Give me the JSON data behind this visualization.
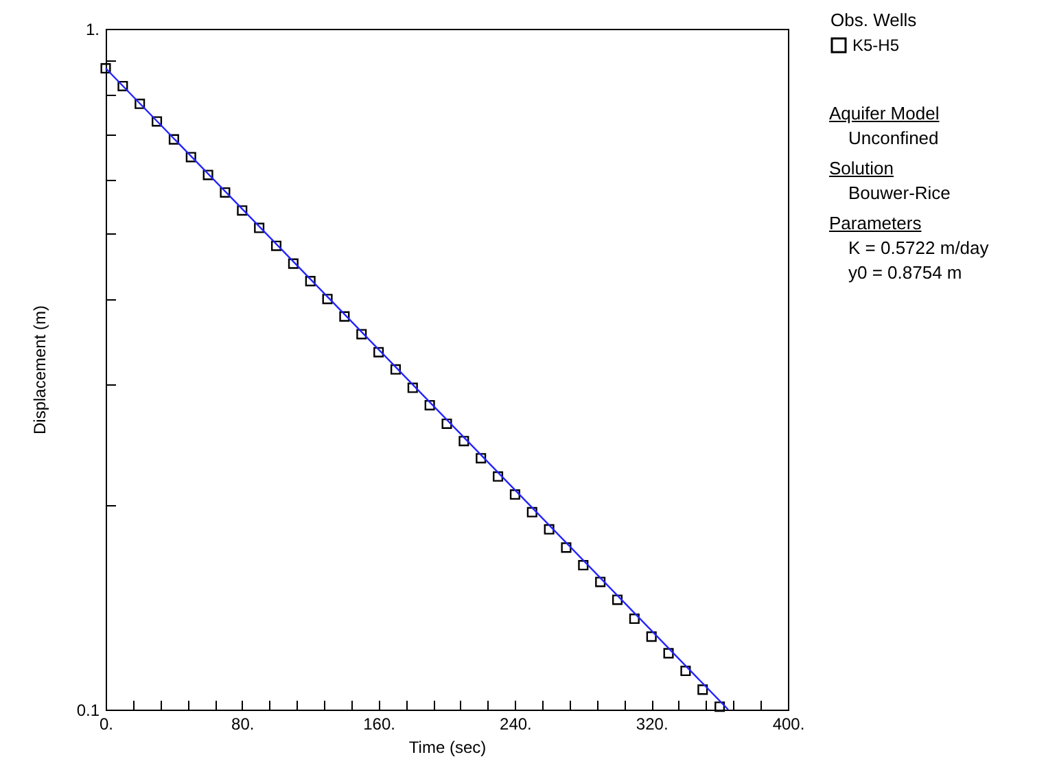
{
  "chart_data": {
    "type": "scatter",
    "xlabel": "Time (sec)",
    "ylabel": "Displacement (m)",
    "legend_title": "Obs. Wells",
    "legend": "right",
    "log": true,
    "grid": false,
    "xlim": [
      0,
      400
    ],
    "xticks": [
      {
        "value": 0,
        "label": "0."
      },
      {
        "value": 16,
        "label": null
      },
      {
        "value": 32,
        "label": null
      },
      {
        "value": 48,
        "label": null
      },
      {
        "value": 64,
        "label": null
      },
      {
        "value": 80,
        "label": "80."
      },
      {
        "value": 96,
        "label": null
      },
      {
        "value": 112,
        "label": null
      },
      {
        "value": 128,
        "label": null
      },
      {
        "value": 144,
        "label": null
      },
      {
        "value": 160,
        "label": "160."
      },
      {
        "value": 176,
        "label": null
      },
      {
        "value": 192,
        "label": null
      },
      {
        "value": 208,
        "label": null
      },
      {
        "value": 224,
        "label": null
      },
      {
        "value": 240,
        "label": "240."
      },
      {
        "value": 256,
        "label": null
      },
      {
        "value": 272,
        "label": null
      },
      {
        "value": 288,
        "label": null
      },
      {
        "value": 304,
        "label": null
      },
      {
        "value": 320,
        "label": "320."
      },
      {
        "value": 336,
        "label": null
      },
      {
        "value": 352,
        "label": null
      },
      {
        "value": 368,
        "label": null
      },
      {
        "value": 384,
        "label": null
      },
      {
        "value": 400,
        "label": "400."
      }
    ],
    "ylim": [
      0.1,
      1
    ],
    "yticks": [
      0.1,
      {
        "value": 0.2,
        "label": null
      },
      {
        "value": 0.3,
        "label": null
      },
      {
        "value": 0.4,
        "label": null
      },
      {
        "value": 0.5,
        "label": null
      },
      {
        "value": 0.6,
        "label": null
      },
      {
        "value": 0.7,
        "label": null
      },
      {
        "value": 0.8,
        "label": null
      },
      {
        "value": 0.9,
        "label": null
      },
      {
        "value": 1,
        "label": "1."
      }
    ],
    "series": [
      {
        "name": "K5-H5",
        "marker": "square",
        "color": "#000000",
        "x": [
          0,
          10,
          20,
          30,
          40,
          50,
          60,
          70,
          80,
          90,
          100,
          110,
          120,
          130,
          140,
          150,
          160,
          170,
          180,
          190,
          200,
          210,
          220,
          230,
          240,
          250,
          260,
          270,
          280,
          290,
          300,
          310,
          320,
          330,
          340,
          350,
          360
        ],
        "values": [
          0.875,
          0.824,
          0.776,
          0.731,
          0.688,
          0.648,
          0.61,
          0.575,
          0.541,
          0.51,
          0.48,
          0.452,
          0.426,
          0.401,
          0.378,
          0.356,
          0.335,
          0.316,
          0.297,
          0.28,
          0.263,
          0.248,
          0.234,
          0.22,
          0.207,
          0.195,
          0.184,
          0.173,
          0.163,
          0.154,
          0.145,
          0.136,
          0.128,
          0.121,
          0.114,
          0.107,
          0.101
        ]
      },
      {
        "type": "line",
        "color": "#2222ff",
        "line_style": "solid",
        "x": [
          0,
          365
        ],
        "values": [
          0.875,
          0.1
        ]
      }
    ],
    "annotations": [
      "Aquifer Model",
      "Unconfined",
      "Solution",
      "Bouwer-Rice",
      "Parameters",
      "K  = 0.5722 m/day",
      "y0 = 0.8754 m"
    ]
  }
}
